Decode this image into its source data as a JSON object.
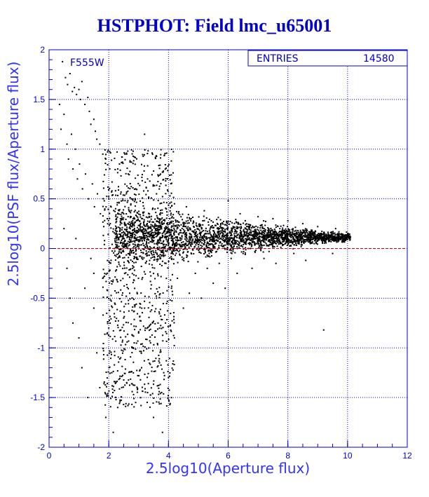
{
  "chart_data": {
    "type": "scatter",
    "title": "HSTPHOT: Field lmc_u65001",
    "xlabel": "2.5log10(Aperture flux)",
    "ylabel": "2.5log10(PSF flux/Aperture flux)",
    "xlim": [
      0,
      12
    ],
    "ylim": [
      -2,
      2
    ],
    "x_ticks": [
      "0",
      "2",
      "4",
      "6",
      "8",
      "10",
      "12"
    ],
    "y_ticks": [
      "-2",
      "-1.5",
      "-1",
      "-0.5",
      "0",
      "0.5",
      "1",
      "1.5",
      "2"
    ],
    "grid": true,
    "reference_line": {
      "y": 0,
      "color": "#cc0000",
      "style": "dashed"
    },
    "annotation": "F555W",
    "stats_box": {
      "label": "ENTRIES",
      "value": "14580"
    },
    "series": [
      {
        "color": "#000000",
        "points": [
          [
            0.45,
            1.88
          ],
          [
            0.55,
            1.72
          ],
          [
            0.62,
            1.65
          ],
          [
            0.7,
            1.76
          ],
          [
            0.78,
            1.58
          ],
          [
            0.85,
            1.62
          ],
          [
            0.92,
            1.55
          ],
          [
            1.0,
            1.6
          ],
          [
            1.05,
            1.5
          ],
          [
            1.1,
            1.68
          ],
          [
            1.2,
            1.45
          ],
          [
            1.3,
            1.52
          ],
          [
            1.35,
            1.38
          ],
          [
            1.4,
            1.25
          ],
          [
            1.5,
            1.3
          ],
          [
            1.55,
            1.18
          ],
          [
            1.6,
            1.1
          ],
          [
            1.7,
            1.05
          ],
          [
            1.8,
            0.95
          ],
          [
            1.9,
            0.9
          ],
          [
            0.35,
            1.45
          ],
          [
            0.4,
            1.2
          ],
          [
            0.5,
            1.35
          ],
          [
            0.6,
            1.05
          ],
          [
            0.65,
            0.9
          ],
          [
            0.75,
            1.15
          ],
          [
            0.8,
            0.8
          ],
          [
            0.88,
            1.0
          ],
          [
            0.95,
            0.7
          ],
          [
            1.02,
            0.85
          ],
          [
            1.12,
            0.6
          ],
          [
            1.22,
            0.75
          ],
          [
            1.32,
            0.5
          ],
          [
            1.45,
            0.65
          ],
          [
            1.52,
            0.42
          ],
          [
            1.62,
            0.55
          ],
          [
            1.72,
            0.35
          ],
          [
            1.85,
            0.48
          ],
          [
            1.95,
            0.3
          ],
          [
            2.05,
            0.25
          ],
          [
            0.5,
            0.2
          ],
          [
            0.6,
            -0.2
          ],
          [
            0.7,
            -0.5
          ],
          [
            0.8,
            -0.75
          ],
          [
            0.9,
            0.1
          ],
          [
            1.0,
            -0.9
          ],
          [
            1.1,
            -1.2
          ],
          [
            1.2,
            -0.4
          ],
          [
            1.3,
            -1.5
          ],
          [
            1.4,
            -0.1
          ],
          [
            1.5,
            -0.6
          ],
          [
            1.6,
            -1.05
          ],
          [
            1.7,
            -1.4
          ],
          [
            1.8,
            -0.3
          ],
          [
            1.9,
            -1.7
          ],
          [
            2.0,
            -0.8
          ],
          [
            2.1,
            -1.25
          ],
          [
            2.15,
            -1.85
          ],
          [
            2.2,
            -0.55
          ],
          [
            2.3,
            -1.6
          ],
          [
            2.4,
            -1.1
          ],
          [
            2.5,
            -0.7
          ],
          [
            2.6,
            -1.35
          ],
          [
            2.7,
            -0.45
          ],
          [
            2.8,
            -1.0
          ],
          [
            2.9,
            -1.55
          ],
          [
            3.0,
            -0.85
          ],
          [
            3.1,
            -1.2
          ],
          [
            3.2,
            -0.6
          ],
          [
            3.3,
            -1.45
          ],
          [
            3.4,
            -0.95
          ],
          [
            3.5,
            -1.7
          ],
          [
            3.6,
            -0.5
          ],
          [
            3.7,
            -1.15
          ],
          [
            3.8,
            -1.85
          ],
          [
            3.9,
            -0.75
          ],
          [
            4.0,
            -1.3
          ],
          [
            4.1,
            -0.4
          ],
          [
            4.2,
            -0.9
          ],
          [
            4.3,
            -0.3
          ],
          [
            4.5,
            -0.6
          ],
          [
            4.7,
            -0.45
          ],
          [
            4.9,
            -0.25
          ],
          [
            5.1,
            -0.5
          ],
          [
            5.3,
            -0.2
          ],
          [
            5.5,
            -0.35
          ],
          [
            5.7,
            -0.15
          ],
          [
            5.9,
            -0.4
          ],
          [
            6.1,
            -0.1
          ],
          [
            6.3,
            -0.25
          ],
          [
            6.5,
            -0.05
          ],
          [
            6.8,
            -0.2
          ],
          [
            7.2,
            -0.1
          ],
          [
            7.6,
            -0.15
          ],
          [
            8.2,
            -0.05
          ],
          [
            8.6,
            -0.12
          ],
          [
            9.2,
            -0.82
          ],
          [
            9.5,
            -0.05
          ],
          [
            3.2,
            1.15
          ],
          [
            2.6,
            0.95
          ],
          [
            2.3,
            0.8
          ],
          [
            2.9,
            0.6
          ],
          [
            3.3,
            0.7
          ],
          [
            3.6,
            0.55
          ],
          [
            4.2,
            0.45
          ],
          [
            4.6,
            0.42
          ],
          [
            5.2,
            0.38
          ],
          [
            6.0,
            0.48
          ],
          [
            6.4,
            0.35
          ],
          [
            7.0,
            0.32
          ],
          [
            7.5,
            0.3
          ],
          [
            8.0,
            0.28
          ],
          [
            8.5,
            0.25
          ],
          [
            9.0,
            0.22
          ],
          [
            9.6,
            0.2
          ],
          [
            1.5,
            -0.25
          ],
          [
            2.4,
            0.55
          ],
          [
            2.8,
            -0.2
          ],
          [
            3.7,
            0.3
          ],
          [
            4.4,
            0.1
          ]
        ]
      }
    ]
  }
}
